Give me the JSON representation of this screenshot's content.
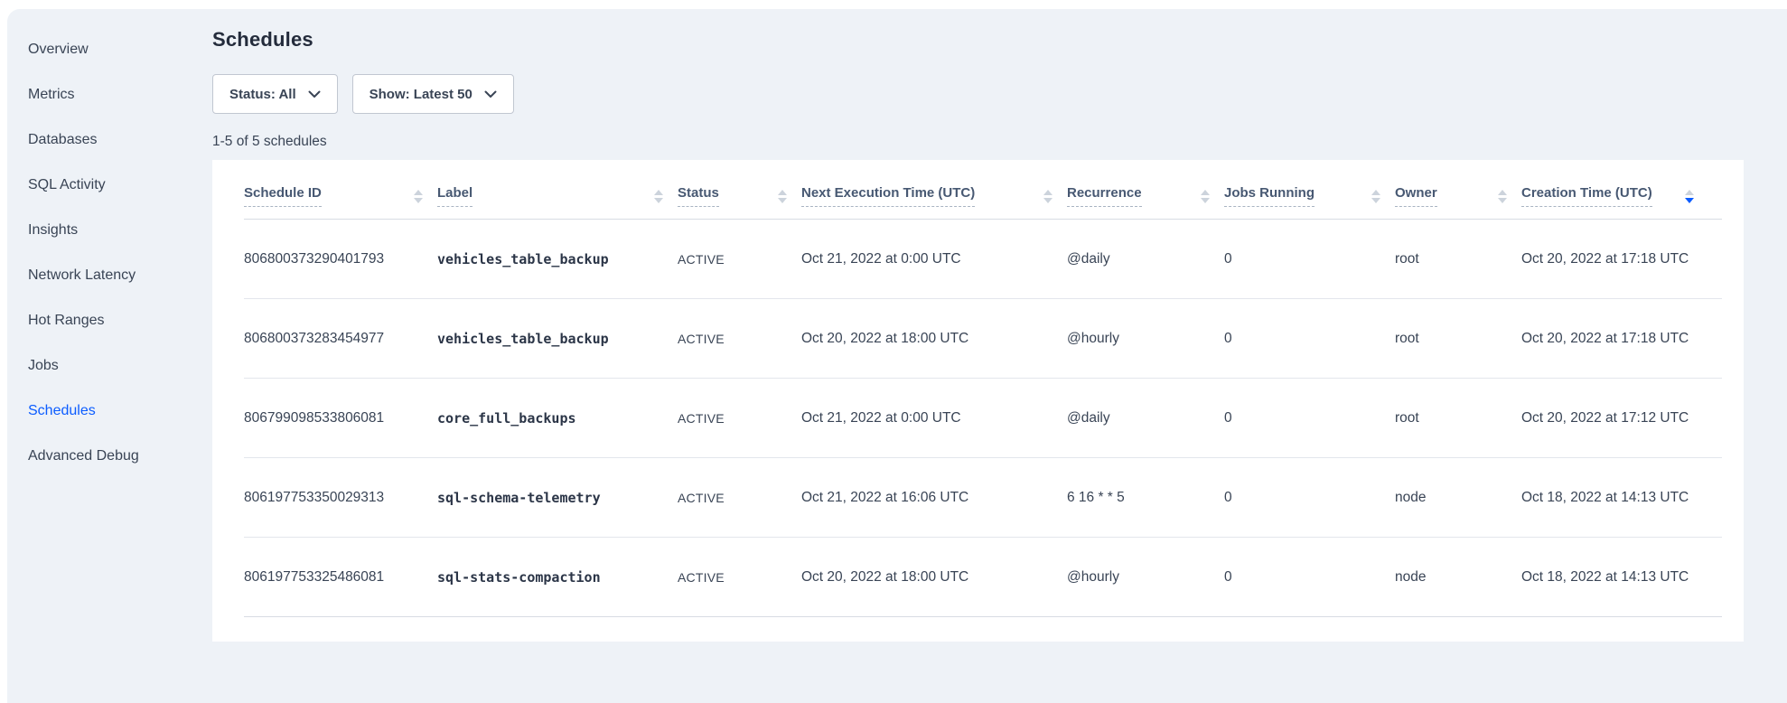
{
  "page": {
    "title": "Schedules",
    "results_count": "1-5 of 5 schedules"
  },
  "filters": {
    "status_label": "Status: All",
    "show_label": "Show: Latest 50"
  },
  "sidebar": {
    "items": [
      {
        "label": "Overview",
        "active": false
      },
      {
        "label": "Metrics",
        "active": false
      },
      {
        "label": "Databases",
        "active": false
      },
      {
        "label": "SQL Activity",
        "active": false
      },
      {
        "label": "Insights",
        "active": false
      },
      {
        "label": "Network Latency",
        "active": false
      },
      {
        "label": "Hot Ranges",
        "active": false
      },
      {
        "label": "Jobs",
        "active": false
      },
      {
        "label": "Schedules",
        "active": true
      },
      {
        "label": "Advanced Debug",
        "active": false
      }
    ]
  },
  "table": {
    "columns": [
      {
        "label": "Schedule ID",
        "sort": "none"
      },
      {
        "label": "Label",
        "sort": "none"
      },
      {
        "label": "Status",
        "sort": "none"
      },
      {
        "label": "Next Execution Time (UTC)",
        "sort": "none"
      },
      {
        "label": "Recurrence",
        "sort": "none"
      },
      {
        "label": "Jobs Running",
        "sort": "none"
      },
      {
        "label": "Owner",
        "sort": "none"
      },
      {
        "label": "Creation Time (UTC)",
        "sort": "desc"
      }
    ],
    "rows": [
      [
        "806800373290401793",
        "vehicles_table_backup",
        "ACTIVE",
        "Oct 21, 2022 at 0:00 UTC",
        "@daily",
        "0",
        "root",
        "Oct 20, 2022 at 17:18 UTC"
      ],
      [
        "806800373283454977",
        "vehicles_table_backup",
        "ACTIVE",
        "Oct 20, 2022 at 18:00 UTC",
        "@hourly",
        "0",
        "root",
        "Oct 20, 2022 at 17:18 UTC"
      ],
      [
        "806799098533806081",
        "core_full_backups",
        "ACTIVE",
        "Oct 21, 2022 at 0:00 UTC",
        "@daily",
        "0",
        "root",
        "Oct 20, 2022 at 17:12 UTC"
      ],
      [
        "806197753350029313",
        "sql-schema-telemetry",
        "ACTIVE",
        "Oct 21, 2022 at 16:06 UTC",
        "6 16 * * 5",
        "0",
        "node",
        "Oct 18, 2022 at 14:13 UTC"
      ],
      [
        "806197753325486081",
        "sql-stats-compaction",
        "ACTIVE",
        "Oct 20, 2022 at 18:00 UTC",
        "@hourly",
        "0",
        "node",
        "Oct 18, 2022 at 14:13 UTC"
      ]
    ]
  },
  "colors": {
    "accent_blue": "#0b5cff",
    "text_dark": "#394455",
    "header_text": "#475872",
    "page_background": "#eef2f7",
    "card_background": "#ffffff",
    "sort_icon_inactive": "#ccd3dc"
  }
}
